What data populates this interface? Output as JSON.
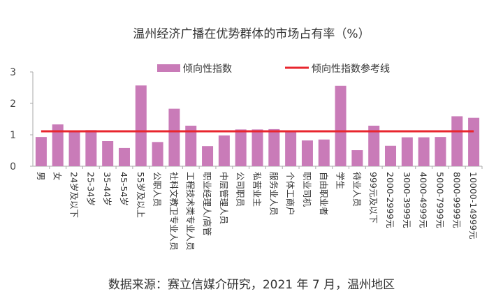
{
  "chart_data": {
    "type": "bar",
    "title": "温州经济广播在优势群体的市场占有率（%）",
    "source": "数据来源：赛立信媒介研究，2021 年 7 月，温州地区",
    "categories": [
      "男",
      "女",
      "24岁及以下",
      "25-34岁",
      "35-44岁",
      "45-54岁",
      "55岁及以上",
      "公职人员",
      "社科文教卫专业人员",
      "工程技术类专业人员",
      "职业经理人/高管",
      "中层管理人员",
      "公司职员",
      "私营业主",
      "服务业人员",
      "个体工商户",
      "职业司机",
      "自由职业者",
      "学生",
      "待业人员",
      "999元及以下",
      "2000-2999元",
      "3000-3999元",
      "4000-4999元",
      "5000-7999元",
      "8000-9999元",
      "10000-14999元"
    ],
    "series": [
      {
        "name": "倾向性指数",
        "type": "bar",
        "color": "#c97bb8",
        "values": [
          0.93,
          1.33,
          1.13,
          1.15,
          0.8,
          0.58,
          2.57,
          0.77,
          1.83,
          1.29,
          0.64,
          0.98,
          1.17,
          1.17,
          1.18,
          1.11,
          0.82,
          0.85,
          2.56,
          0.51,
          1.29,
          0.65,
          0.92,
          0.92,
          0.93,
          1.59,
          1.54
        ]
      },
      {
        "name": "倾向性指数参考线",
        "type": "line",
        "color": "#e8262e",
        "value": 1.11
      }
    ],
    "ylim": [
      0,
      3
    ],
    "yticks": [
      0,
      1,
      2,
      3
    ],
    "grid": false,
    "legend": "top"
  }
}
